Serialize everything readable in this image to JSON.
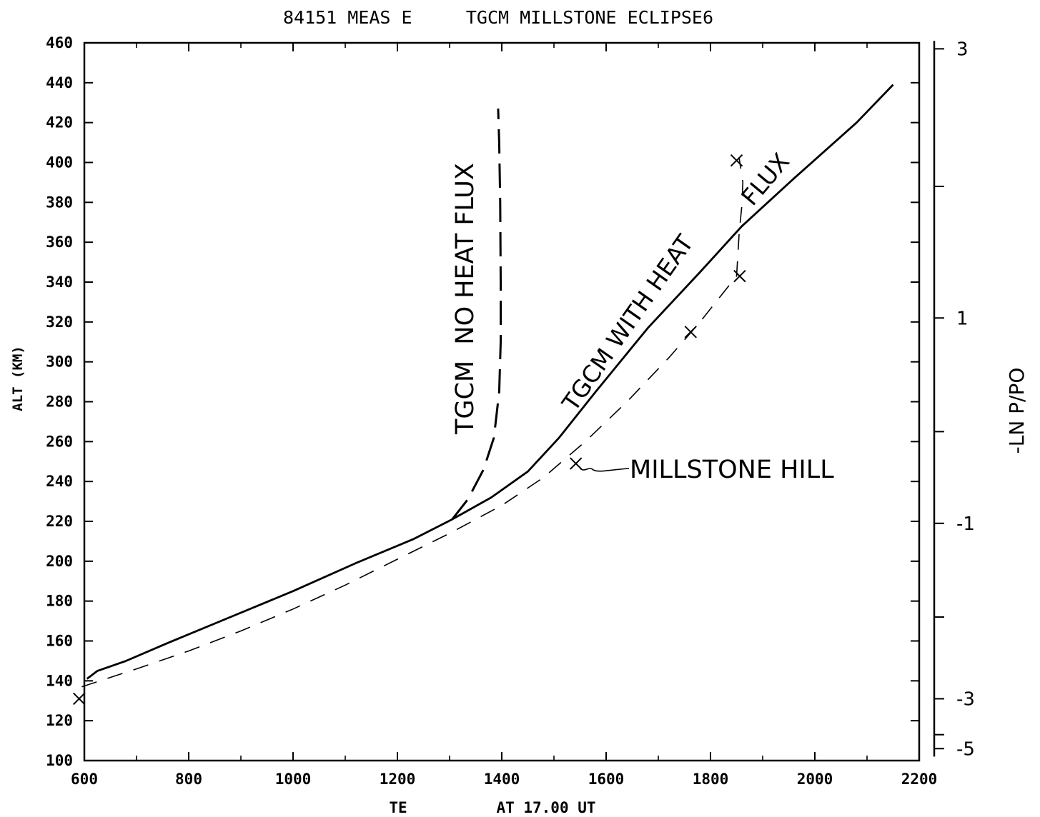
{
  "chart_data": {
    "type": "line",
    "title": "84151 MEAS E     TGCM MILLSTONE ECLIPSE6",
    "xlabel": "TE",
    "xlabel_note": "AT 17.00 UT",
    "ylabel": "ALT (KM)",
    "y2label": "-LN P/PO",
    "xlim": [
      600,
      2200
    ],
    "ylim": [
      100,
      460
    ],
    "x_ticks": [
      600,
      800,
      1000,
      1200,
      1400,
      1600,
      1800,
      2000,
      2200
    ],
    "y_ticks": [
      100,
      120,
      140,
      160,
      180,
      200,
      220,
      240,
      260,
      280,
      300,
      320,
      340,
      360,
      380,
      400,
      420,
      440,
      460
    ],
    "y2_ticks": [
      {
        "label": "3",
        "alt": 457
      },
      {
        "label": "1",
        "alt": 322
      },
      {
        "label": "-1",
        "alt": 219
      },
      {
        "label": "-3",
        "alt": 131
      },
      {
        "label": "-5",
        "alt": 106
      }
    ],
    "series": [
      {
        "name": "TGCM WITH HEAT FLUX",
        "style": "solid",
        "points": [
          [
            605,
            141
          ],
          [
            625,
            145
          ],
          [
            680,
            150
          ],
          [
            760,
            159
          ],
          [
            880,
            172
          ],
          [
            1000,
            185
          ],
          [
            1120,
            199
          ],
          [
            1230,
            211
          ],
          [
            1305,
            221
          ],
          [
            1380,
            232
          ],
          [
            1450,
            245
          ],
          [
            1510,
            262
          ],
          [
            1580,
            285
          ],
          [
            1680,
            317
          ],
          [
            1780,
            345
          ],
          [
            1860,
            368
          ],
          [
            1960,
            392
          ],
          [
            2080,
            420
          ],
          [
            2150,
            439
          ]
        ]
      },
      {
        "name": "TGCM NO HEAT FLUX",
        "style": "dashed",
        "points": [
          [
            1305,
            221
          ],
          [
            1335,
            231
          ],
          [
            1365,
            246
          ],
          [
            1385,
            262
          ],
          [
            1395,
            285
          ],
          [
            1398,
            310
          ],
          [
            1398,
            340
          ],
          [
            1397,
            380
          ],
          [
            1395,
            410
          ],
          [
            1393,
            427
          ]
        ]
      },
      {
        "name": "MILLSTONE HILL",
        "style": "dashed-thin",
        "points": [
          [
            595,
            137
          ],
          [
            700,
            146
          ],
          [
            800,
            155
          ],
          [
            900,
            165
          ],
          [
            1000,
            176
          ],
          [
            1100,
            188
          ],
          [
            1200,
            201
          ],
          [
            1300,
            214
          ],
          [
            1400,
            228
          ],
          [
            1480,
            242
          ],
          [
            1560,
            260
          ],
          [
            1640,
            280
          ],
          [
            1720,
            302
          ],
          [
            1780,
            320
          ],
          [
            1850,
            343
          ],
          [
            1852,
            352
          ],
          [
            1855,
            365
          ],
          [
            1860,
            378
          ],
          [
            1862,
            390
          ],
          [
            1855,
            402
          ]
        ]
      }
    ],
    "markers": [
      {
        "series": "MILLSTONE HILL",
        "x": 590,
        "y": 131
      },
      {
        "series": "MILLSTONE HILL",
        "x": 1542,
        "y": 249
      },
      {
        "series": "MILLSTONE HILL",
        "x": 1762,
        "y": 315
      },
      {
        "series": "MILLSTONE HILL",
        "x": 1856,
        "y": 343
      },
      {
        "series": "MILLSTONE HILL",
        "x": 1850,
        "y": 401
      }
    ],
    "annotations": [
      {
        "text": "TGCM  NO HEAT FLUX"
      },
      {
        "text": "TGCM WITH HEAT"
      },
      {
        "text": "FLUX"
      },
      {
        "text": "MILLSTONE HILL"
      }
    ]
  }
}
